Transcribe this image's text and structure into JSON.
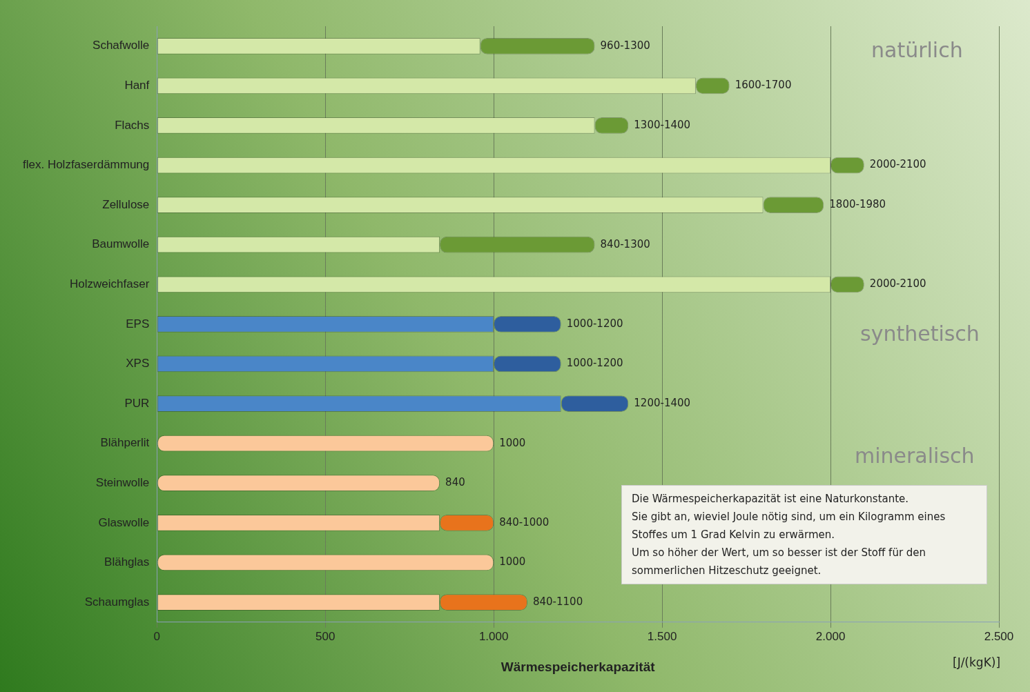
{
  "chart_data": {
    "type": "bar",
    "orientation": "horizontal",
    "stacked": true,
    "xlabel": "Wärmespeicherkapazität",
    "categories": [
      "Schafwolle",
      "Hanf",
      "Flachs",
      "flex. Holzfaserdämmung",
      "Zellulose",
      "Baumwolle",
      "Holzweichfaser",
      "EPS",
      "XPS",
      "PUR",
      "Blähperlit",
      "Steinwolle",
      "Glaswolle",
      "Blähglas",
      "Schaumglas"
    ],
    "series": [
      {
        "colors": [
          "#d4e8a8",
          "#d4e8a8",
          "#d4e8a8",
          "#d4e8a8",
          "#d4e8a8",
          "#d4e8a8",
          "#d4e8a8",
          "#4a86c8",
          "#4a86c8",
          "#4a86c8",
          "#fbc89a",
          "#fbc89a",
          "#fbc89a",
          "#fbc89a",
          "#fbc89a"
        ],
        "values": [
          960,
          1600,
          1300,
          2000,
          1800,
          840,
          2000,
          1000,
          1000,
          1200,
          1000,
          840,
          840,
          1000,
          840
        ],
        "value_labels": [
          null,
          null,
          null,
          null,
          null,
          null,
          null,
          null,
          null,
          null,
          "1000",
          "840",
          null,
          "1000",
          null
        ]
      },
      {
        "colors": [
          "#6b9a35",
          "#6b9a35",
          "#6b9a35",
          "#6b9a35",
          "#6b9a35",
          "#6b9a35",
          "#6b9a35",
          "#2e5e9e",
          "#2e5e9e",
          "#2e5e9e",
          "#e8731c",
          "#e8731c",
          "#e8731c",
          "#e8731c",
          "#e8731c"
        ],
        "values": [
          340,
          100,
          100,
          100,
          180,
          460,
          100,
          200,
          200,
          200,
          null,
          null,
          160,
          null,
          260
        ],
        "value_labels": [
          "960-1300",
          "1600-1700",
          "1300-1400",
          "2000-2100",
          "1800-1980",
          "840-1300",
          "2000-2100",
          "1000-1200",
          "1000-1200",
          "1200-1400",
          null,
          null,
          "840-1000",
          null,
          "840-1100"
        ]
      }
    ],
    "xlim": [
      0,
      2500
    ],
    "xticks": [
      0,
      500,
      {
        "value": 1000,
        "label": "1.000"
      },
      {
        "value": 1500,
        "label": "1.500"
      },
      {
        "value": 2000,
        "label": "2.000"
      },
      {
        "value": 2500,
        "label": "2.500"
      }
    ],
    "grid": "x",
    "legend": false,
    "annotations": [
      "natürlich",
      "synthetisch",
      "mineralisch",
      "Die Wärmespeicherkapazität ist eine Naturkonstante.\nSie gibt an, wieviel Joule nötig sind, um ein Kilogramm eines Stoffes um 1 Grad Kelvin zu erwärmen.\nUm so höher der Wert, um so besser ist der Stoff für den sommerlichen Hitzeschutz geeignet.",
      "[J/(kgK)]"
    ]
  }
}
